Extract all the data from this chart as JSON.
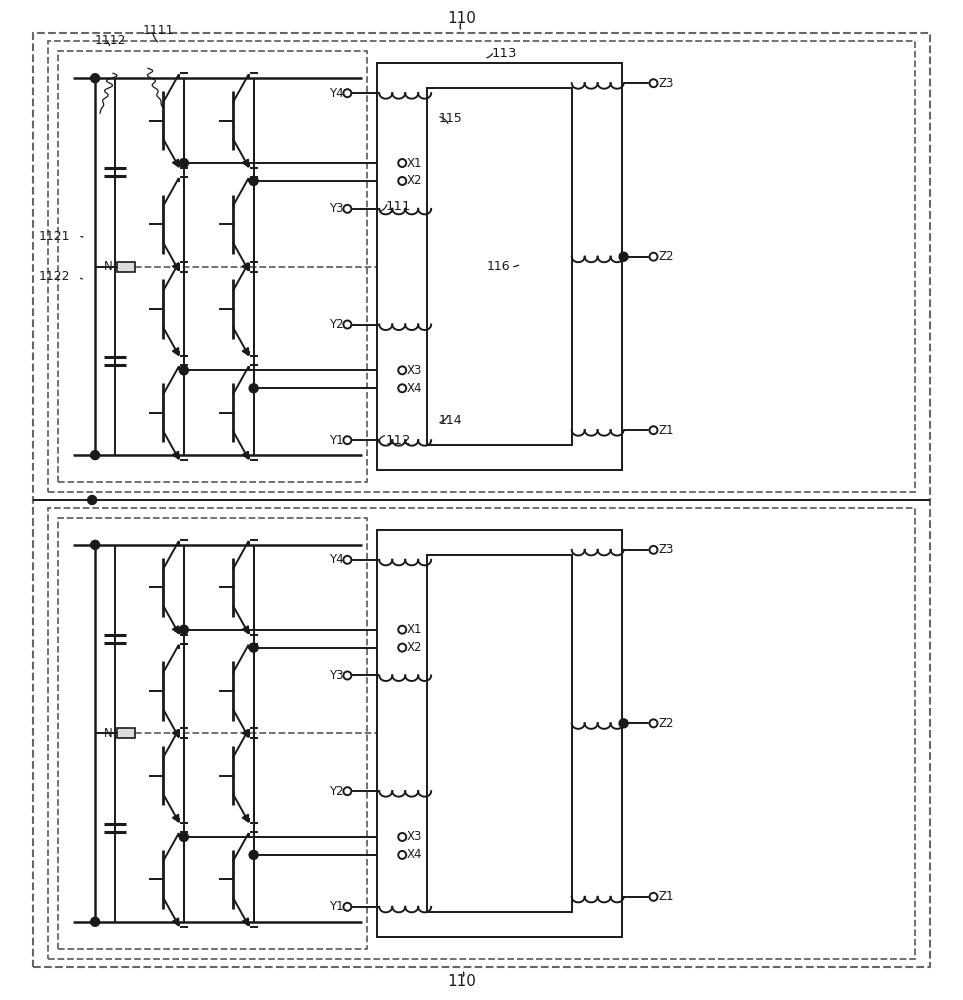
{
  "bg_color": "#ffffff",
  "line_color": "#1a1a1a",
  "dashed_color": "#666666",
  "figure_width": 9.63,
  "figure_height": 10.0,
  "labels": {
    "110": "110",
    "111": "111",
    "112": "112",
    "113": "113",
    "114": "114",
    "115": "115",
    "116": "116",
    "1111": "1111",
    "1112": "1112",
    "1121": "1121",
    "1122": "1122"
  }
}
